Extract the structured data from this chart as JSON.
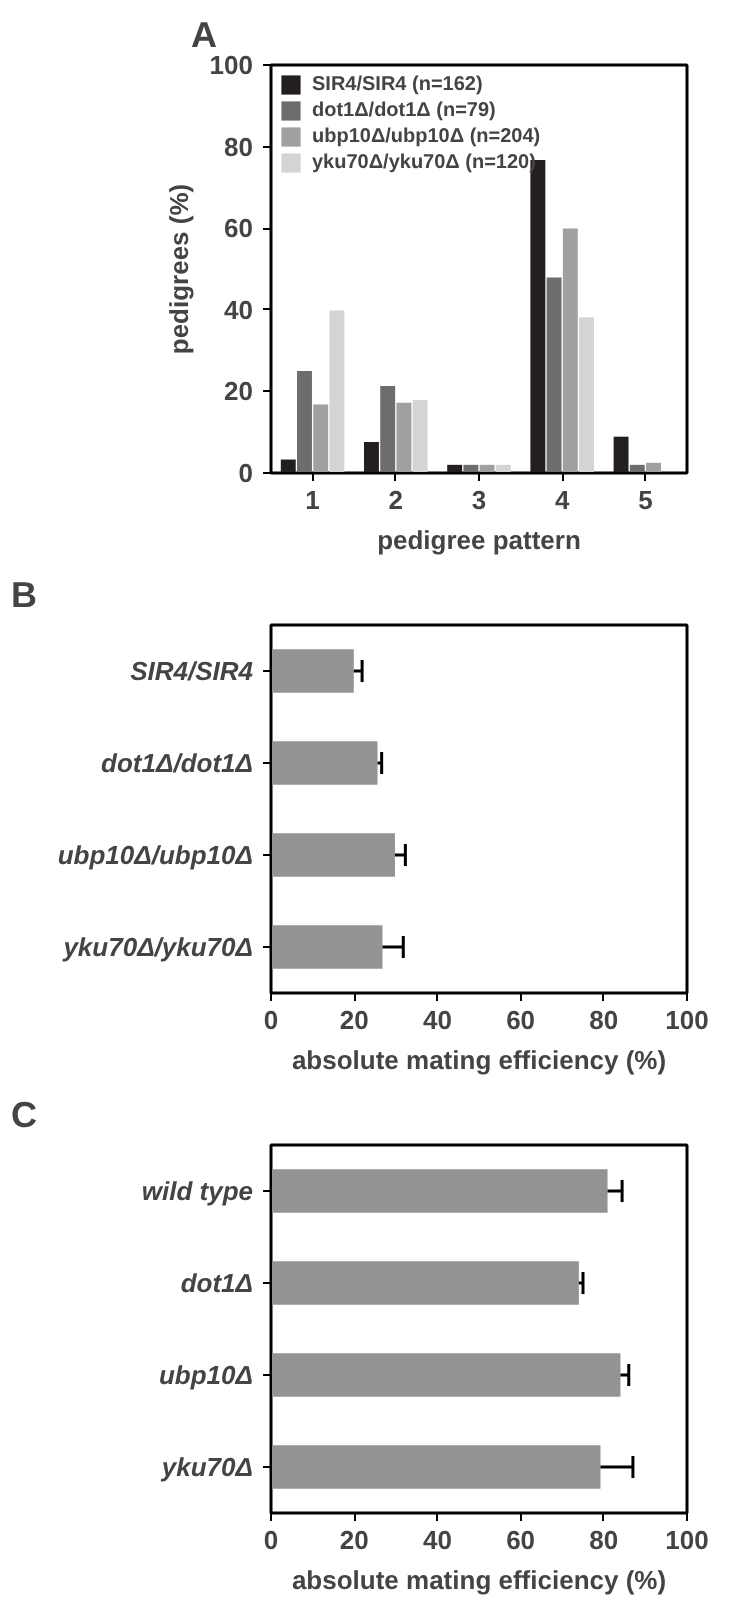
{
  "chart_data": [
    {
      "type": "bar",
      "title": "A",
      "xlabel": "pedigree pattern",
      "ylabel": "pedigrees (%)",
      "categories": [
        "1",
        "2",
        "3",
        "4",
        "5"
      ],
      "ylim": [
        0,
        100
      ],
      "yticks": [
        0,
        20,
        40,
        60,
        80,
        100
      ],
      "grid": false,
      "legend": "top left",
      "series": [
        {
          "name": "SIR4/SIR4 (n=162)",
          "color": "#231f20",
          "values": [
            3.3,
            7.6,
            2,
            76.7,
            8.9
          ]
        },
        {
          "name": "dot1Δ/dot1Δ (n=79)",
          "color": "#6d6d6d",
          "values": [
            25,
            21.3,
            2,
            47.9,
            2
          ]
        },
        {
          "name": "ubp10Δ/ubp10Δ (n=204)",
          "color": "#a0a0a0",
          "values": [
            16.8,
            17.2,
            2,
            59.9,
            2.5
          ]
        },
        {
          "name": "yku70Δ/yku70Δ (n=120)",
          "color": "#d4d4d4",
          "values": [
            39.8,
            17.9,
            2,
            38.2,
            null
          ]
        }
      ]
    },
    {
      "type": "bar",
      "orientation": "horizontal",
      "title": "B",
      "xlabel": "absolute mating efficiency (%)",
      "categories": [
        "SIR4/SIR4",
        "dot1Δ/dot1Δ",
        "ubp10Δ/ubp10Δ",
        "yku70Δ/yku70Δ"
      ],
      "values": [
        19.9,
        25.6,
        29.8,
        26.8
      ],
      "errors": [
        [
          19.9,
          21.9
        ],
        [
          25.6,
          26.6
        ],
        [
          29.8,
          32.3
        ],
        [
          26.8,
          31.8
        ]
      ],
      "color": "#939393",
      "xlim": [
        0,
        100
      ],
      "xticks": [
        0,
        20,
        40,
        60,
        80,
        100
      ],
      "grid": false
    },
    {
      "type": "bar",
      "orientation": "horizontal",
      "title": "C",
      "xlabel": "absolute mating efficiency (%)",
      "categories": [
        "wild type",
        "dot1Δ",
        "ubp10Δ",
        "yku70Δ"
      ],
      "values": [
        80.9,
        74,
        84,
        79.2
      ],
      "errors": [
        [
          80.9,
          84.4
        ],
        [
          74,
          75
        ],
        [
          84,
          86
        ],
        [
          79.2,
          87
        ]
      ],
      "color": "#939393",
      "xlim": [
        0,
        100
      ],
      "xticks": [
        0,
        20,
        40,
        60,
        80,
        100
      ],
      "grid": false
    }
  ]
}
